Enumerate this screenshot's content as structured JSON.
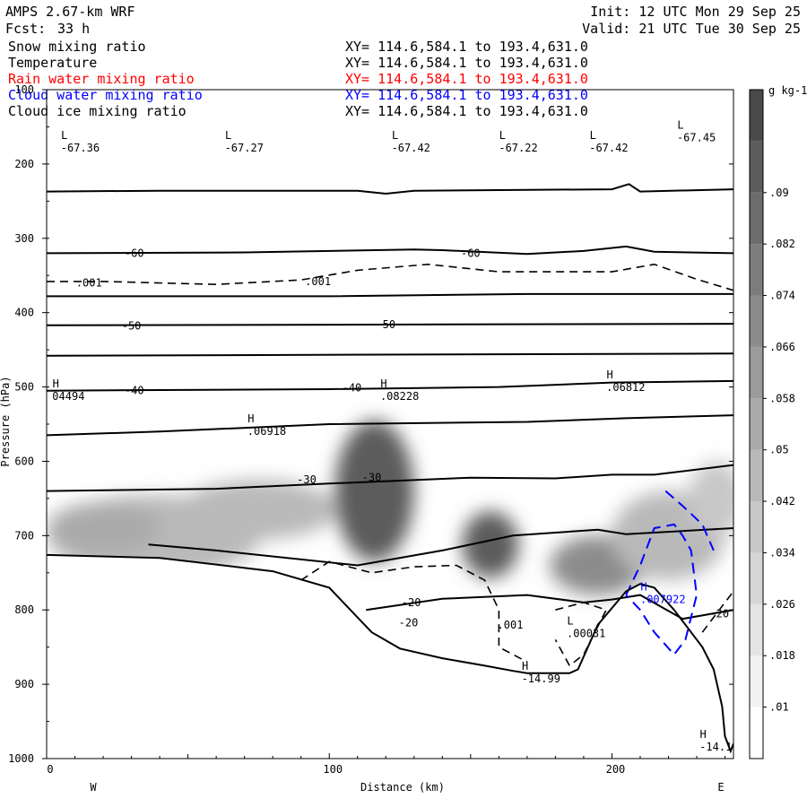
{
  "header": {
    "model": "AMPS 2.67-km WRF",
    "forecast_label": "Fcst:",
    "forecast_value": "33 h",
    "init": "Init: 12 UTC Mon 29 Sep 25",
    "valid": "Valid: 21 UTC Tue 30 Sep 25"
  },
  "fields": [
    {
      "name": "Snow mixing ratio",
      "xy": "XY= 114.6,584.1 to 193.4,631.0",
      "color": "#000000"
    },
    {
      "name": "Temperature",
      "xy": "XY= 114.6,584.1 to 193.4,631.0",
      "color": "#000000"
    },
    {
      "name": "Rain water mixing ratio",
      "xy": "XY= 114.6,584.1 to 193.4,631.0",
      "color": "#ff0000"
    },
    {
      "name": "Cloud water mixing ratio",
      "xy": "XY= 114.6,584.1 to 193.4,631.0",
      "color": "#0000ff"
    },
    {
      "name": "Cloud ice mixing ratio",
      "xy": "XY= 114.6,584.1 to 193.4,631.0",
      "color": "#000000"
    }
  ],
  "chart_data": {
    "type": "cross-section",
    "xlabel": "Distance (km)",
    "ylabel": "Pressure (hPa)",
    "x_ticks": [
      "0",
      "100",
      "200"
    ],
    "x_tick_values": [
      0,
      100,
      200
    ],
    "xlim": [
      0,
      243
    ],
    "y_ticks": [
      "100",
      "200",
      "300",
      "400",
      "500",
      "600",
      "700",
      "800",
      "900",
      "1000"
    ],
    "y_tick_values": [
      100,
      200,
      300,
      400,
      500,
      600,
      700,
      800,
      900,
      1000
    ],
    "ylim": [
      100,
      1000
    ],
    "west_label": "W",
    "east_label": "E",
    "colorbar": {
      "unit_label": "g kg-1",
      "labels": [
        ".01",
        ".018",
        ".026",
        ".034",
        ".042",
        ".05",
        ".058",
        ".066",
        ".074",
        ".082",
        ".09"
      ],
      "levels": [
        0.01,
        0.018,
        0.026,
        0.034,
        0.042,
        0.05,
        0.058,
        0.066,
        0.074,
        0.082,
        0.09
      ],
      "bin_colors": [
        "#ffffff",
        "#f2f2f2",
        "#e4e4e4",
        "#d6d6d6",
        "#c8c8c8",
        "#b9b9b9",
        "#aaaaaa",
        "#9b9b9b",
        "#8c8c8c",
        "#7c7c7c",
        "#6c6c6c",
        "#5c5c5c",
        "#4a4a4a"
      ]
    },
    "temperature_contour_labels": [
      {
        "text": "-60",
        "x": 31,
        "p": 320
      },
      {
        "text": "-60",
        "x": 150,
        "p": 320
      },
      {
        "text": "-50",
        "x": 30,
        "p": 418
      },
      {
        "text": "-50",
        "x": 120,
        "p": 416
      },
      {
        "text": "-40",
        "x": 31,
        "p": 505
      },
      {
        "text": "-40",
        "x": 108,
        "p": 501
      },
      {
        "text": "-30",
        "x": 92,
        "p": 625
      },
      {
        "text": "-30",
        "x": 115,
        "p": 622
      },
      {
        "text": "-20",
        "x": 129,
        "p": 790
      },
      {
        "text": "-20",
        "x": 128,
        "p": 817
      },
      {
        "text": "-20",
        "x": 238,
        "p": 805
      }
    ],
    "snow_contour_labels": [
      {
        "text": ".001",
        "x": 15,
        "p": 360
      },
      {
        "text": ".001",
        "x": 96,
        "p": 358
      },
      {
        "text": ".001",
        "x": 164,
        "p": 820
      }
    ],
    "extrema": [
      {
        "letter": "L",
        "value": "-67.36",
        "x": 5,
        "p": 181,
        "color": "#000000"
      },
      {
        "letter": "L",
        "value": "-67.27",
        "x": 63,
        "p": 181,
        "color": "#000000"
      },
      {
        "letter": "L",
        "value": "-67.42",
        "x": 122,
        "p": 181,
        "color": "#000000"
      },
      {
        "letter": "L",
        "value": "-67.22",
        "x": 160,
        "p": 181,
        "color": "#000000"
      },
      {
        "letter": "L",
        "value": "-67.42",
        "x": 192,
        "p": 181,
        "color": "#000000"
      },
      {
        "letter": "L",
        "value": "-67.45",
        "x": 223,
        "p": 167,
        "color": "#000000"
      },
      {
        "letter": "H",
        "value": "04494",
        "x": 2,
        "p": 515,
        "color": "#000000"
      },
      {
        "letter": "H",
        "value": ".06918",
        "x": 71,
        "p": 562,
        "color": "#000000"
      },
      {
        "letter": "H",
        "value": ".08228",
        "x": 118,
        "p": 515,
        "color": "#000000"
      },
      {
        "letter": "H",
        "value": ".06812",
        "x": 198,
        "p": 503,
        "color": "#000000"
      },
      {
        "letter": "H",
        "value": ".007922",
        "x": 210,
        "p": 788,
        "color": "#0000ff"
      },
      {
        "letter": "L",
        "value": ".00031",
        "x": 184,
        "p": 834,
        "color": "#000000"
      },
      {
        "letter": "H",
        "value": "-14.99",
        "x": 168,
        "p": 895,
        "color": "#000000"
      },
      {
        "letter": "H",
        "value": "-14.1",
        "x": 231,
        "p": 987,
        "color": "#000000"
      }
    ],
    "snow_blobs": [
      {
        "x": 38,
        "p": 700,
        "rx": 38,
        "rp": 55,
        "value": 0.04
      },
      {
        "x": 20,
        "p": 690,
        "rx": 20,
        "rp": 35,
        "value": 0.045
      },
      {
        "x": 75,
        "p": 665,
        "rx": 28,
        "rp": 40,
        "value": 0.035
      },
      {
        "x": 116,
        "p": 640,
        "rx": 14,
        "rp": 95,
        "value": 0.085
      },
      {
        "x": 157,
        "p": 712,
        "rx": 10,
        "rp": 45,
        "value": 0.088
      },
      {
        "x": 195,
        "p": 740,
        "rx": 17,
        "rp": 40,
        "value": 0.06
      },
      {
        "x": 220,
        "p": 700,
        "rx": 20,
        "rp": 60,
        "value": 0.04
      },
      {
        "x": 237,
        "p": 650,
        "rx": 10,
        "rp": 50,
        "value": 0.03
      }
    ],
    "temperature_isotherms": [
      [
        [
          0,
          237
        ],
        [
          40,
          236
        ],
        [
          80,
          236
        ],
        [
          110,
          236
        ],
        [
          120,
          240
        ],
        [
          130,
          236
        ],
        [
          200,
          234
        ],
        [
          206,
          227
        ],
        [
          210,
          237
        ],
        [
          243,
          234
        ]
      ],
      [
        [
          0,
          320
        ],
        [
          70,
          319
        ],
        [
          130,
          315
        ],
        [
          140,
          316
        ],
        [
          170,
          321
        ],
        [
          190,
          317
        ],
        [
          205,
          311
        ],
        [
          215,
          318
        ],
        [
          243,
          320
        ]
      ],
      [
        [
          0,
          378
        ],
        [
          100,
          378
        ],
        [
          170,
          375
        ],
        [
          243,
          375
        ]
      ],
      [
        [
          0,
          417
        ],
        [
          243,
          415
        ]
      ],
      [
        [
          0,
          458
        ],
        [
          243,
          455
        ]
      ],
      [
        [
          0,
          505
        ],
        [
          100,
          503
        ],
        [
          160,
          500
        ],
        [
          200,
          494
        ],
        [
          243,
          492
        ]
      ],
      [
        [
          0,
          565
        ],
        [
          40,
          560
        ],
        [
          100,
          550
        ],
        [
          170,
          547
        ],
        [
          205,
          542
        ],
        [
          243,
          538
        ]
      ],
      [
        [
          0,
          640
        ],
        [
          60,
          637
        ],
        [
          100,
          630
        ],
        [
          150,
          622
        ],
        [
          180,
          623
        ],
        [
          200,
          618
        ],
        [
          215,
          618
        ],
        [
          243,
          605
        ]
      ],
      [
        [
          36,
          712
        ],
        [
          60,
          720
        ],
        [
          110,
          740
        ],
        [
          140,
          720
        ],
        [
          165,
          700
        ],
        [
          195,
          692
        ],
        [
          205,
          698
        ],
        [
          243,
          690
        ]
      ],
      [
        [
          113,
          800
        ],
        [
          140,
          785
        ],
        [
          170,
          780
        ],
        [
          190,
          790
        ],
        [
          200,
          786
        ],
        [
          210,
          780
        ],
        [
          225,
          812
        ],
        [
          243,
          800
        ]
      ]
    ],
    "snow_dashed_isolines": [
      [
        [
          0,
          358
        ],
        [
          20,
          358
        ],
        [
          60,
          362
        ],
        [
          90,
          356
        ],
        [
          110,
          343
        ],
        [
          135,
          335
        ],
        [
          160,
          345
        ],
        [
          200,
          345
        ],
        [
          215,
          335
        ],
        [
          230,
          355
        ],
        [
          243,
          370
        ]
      ],
      [
        [
          90,
          760
        ],
        [
          100,
          735
        ],
        [
          115,
          750
        ],
        [
          130,
          742
        ],
        [
          145,
          740
        ],
        [
          155,
          760
        ],
        [
          160,
          800
        ],
        [
          160,
          850
        ],
        [
          170,
          870
        ]
      ],
      [
        [
          180,
          800
        ],
        [
          190,
          790
        ],
        [
          198,
          800
        ],
        [
          190,
          860
        ],
        [
          185,
          875
        ],
        [
          180,
          840
        ]
      ],
      [
        [
          232,
          830
        ],
        [
          238,
          800
        ],
        [
          243,
          775
        ]
      ]
    ],
    "cloud_water_isolines": [
      [
        [
          205,
          780
        ],
        [
          210,
          740
        ],
        [
          215,
          690
        ],
        [
          222,
          685
        ],
        [
          225,
          700
        ],
        [
          228,
          720
        ],
        [
          230,
          780
        ],
        [
          226,
          840
        ],
        [
          222,
          860
        ],
        [
          215,
          830
        ],
        [
          210,
          800
        ],
        [
          205,
          780
        ]
      ],
      [
        [
          219,
          640
        ],
        [
          225,
          660
        ],
        [
          232,
          685
        ],
        [
          236,
          720
        ]
      ]
    ],
    "terrain": [
      [
        0,
        726
      ],
      [
        40,
        730
      ],
      [
        80,
        748
      ],
      [
        100,
        770
      ],
      [
        115,
        830
      ],
      [
        125,
        852
      ],
      [
        140,
        865
      ],
      [
        155,
        875
      ],
      [
        165,
        882
      ],
      [
        170,
        885
      ],
      [
        185,
        885
      ],
      [
        188,
        880
      ],
      [
        195,
        820
      ],
      [
        205,
        775
      ],
      [
        210,
        765
      ],
      [
        215,
        770
      ],
      [
        222,
        800
      ],
      [
        232,
        850
      ],
      [
        236,
        880
      ],
      [
        239,
        930
      ],
      [
        240,
        970
      ],
      [
        242,
        990
      ],
      [
        243,
        980
      ]
    ]
  }
}
